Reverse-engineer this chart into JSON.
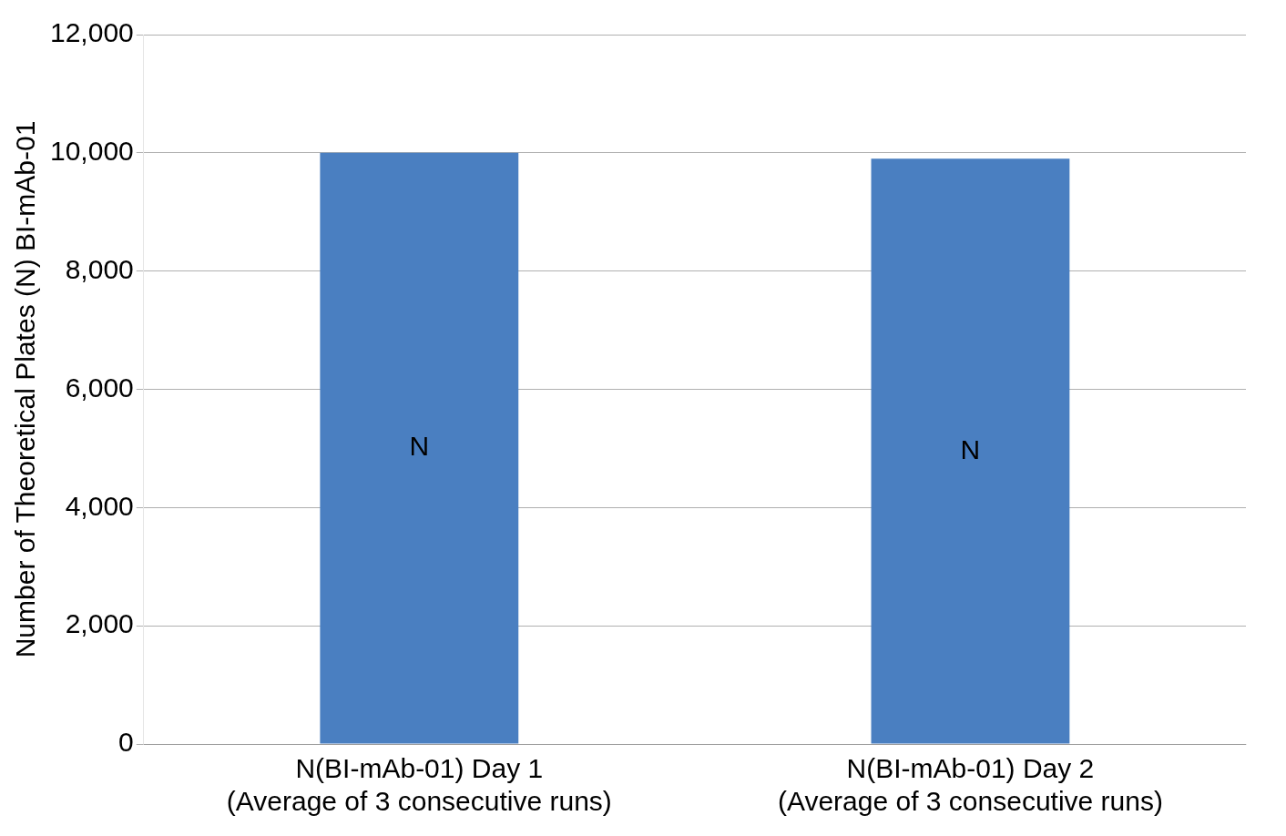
{
  "chart_data": {
    "type": "bar",
    "ylabel": "Number of Theoretical Plates (N) BI-mAb-01",
    "categories": [
      "N(BI-mAb-01) Day 1\n(Average of 3 consecutive runs)",
      "N(BI-mAb-01) Day 2\n(Average of 3 consecutive runs)"
    ],
    "values": [
      10000,
      9900
    ],
    "color": "#4a7fc1",
    "ylim": [
      0,
      12000
    ],
    "yticks": [
      {
        "value": 0,
        "label": "0"
      },
      {
        "value": 2000,
        "label": "2,000"
      },
      {
        "value": 4000,
        "label": "4,000"
      },
      {
        "value": 6000,
        "label": "6,000"
      },
      {
        "value": 8000,
        "label": "8,000"
      },
      {
        "value": 10000,
        "label": "10,000"
      },
      {
        "value": 12000,
        "label": "12,000"
      }
    ],
    "grid": "y",
    "annotations": [
      "N",
      "N"
    ]
  }
}
